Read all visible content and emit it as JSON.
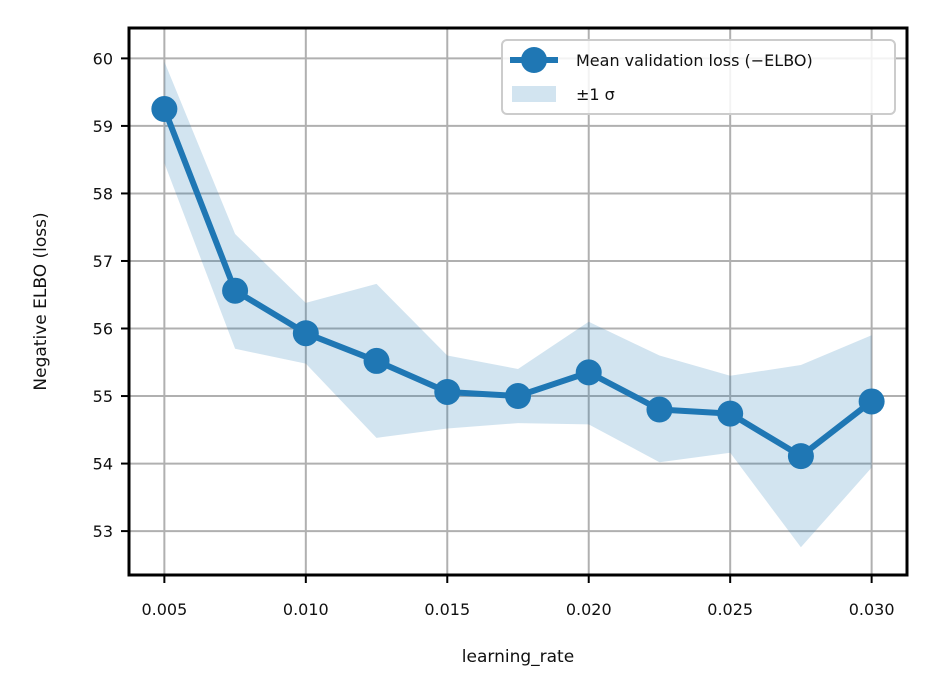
{
  "chart_data": {
    "type": "line",
    "title": "",
    "xlabel": "learning_rate",
    "ylabel": "Negative ELBO (loss)",
    "xlim": [
      0.00375,
      0.03125
    ],
    "ylim": [
      52.35,
      60.45
    ],
    "grid": true,
    "legend_position": "top-right",
    "x_ticks": [
      0.005,
      0.01,
      0.015,
      0.02,
      0.025,
      0.03
    ],
    "x_tick_labels": [
      "0.005",
      "0.010",
      "0.015",
      "0.020",
      "0.025",
      "0.030"
    ],
    "y_ticks": [
      53,
      54,
      55,
      56,
      57,
      58,
      59,
      60
    ],
    "y_tick_labels": [
      "53",
      "54",
      "55",
      "56",
      "57",
      "58",
      "59",
      "60"
    ],
    "x": [
      0.005,
      0.0075,
      0.01,
      0.0125,
      0.015,
      0.0175,
      0.02,
      0.0225,
      0.025,
      0.0275,
      0.03
    ],
    "series": [
      {
        "name": "Mean validation loss (−ELBO)",
        "values": [
          59.25,
          56.56,
          55.93,
          55.52,
          55.06,
          55.0,
          55.35,
          54.8,
          54.74,
          54.11,
          54.92
        ],
        "color": "#1f77b4"
      }
    ],
    "band": {
      "name": "±1 σ",
      "upper": [
        59.95,
        57.4,
        56.38,
        56.66,
        55.6,
        55.4,
        56.1,
        55.6,
        55.3,
        55.46,
        55.9
      ],
      "lower": [
        58.45,
        55.7,
        55.48,
        54.38,
        54.52,
        54.6,
        54.58,
        54.02,
        54.16,
        52.76,
        53.94
      ],
      "color": "#1f77b4",
      "opacity": 0.2
    }
  }
}
